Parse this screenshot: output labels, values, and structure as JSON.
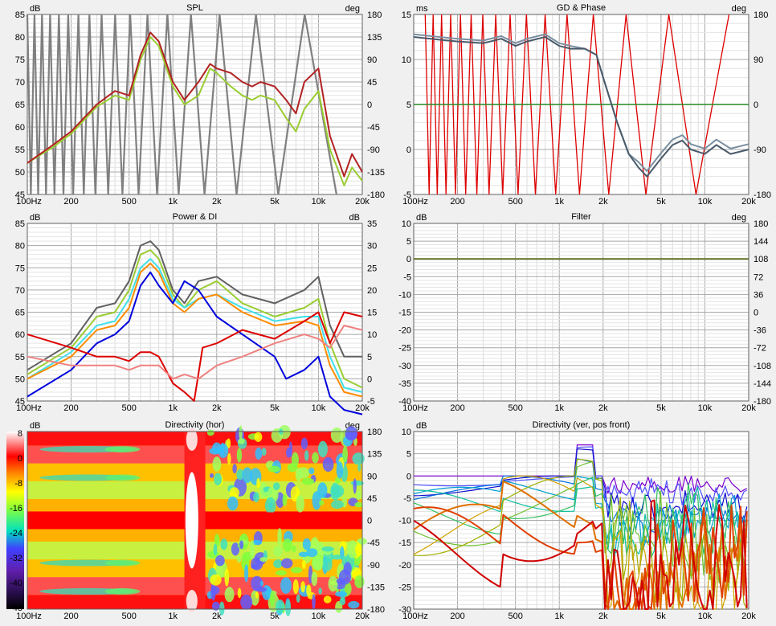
{
  "chart_data": [
    {
      "type": "line",
      "title": "SPL",
      "left_unit": "dB",
      "right_unit": "deg",
      "x_ticks": [
        "100Hz",
        "200",
        "500",
        "1k",
        "2k",
        "5k",
        "10k",
        "20k"
      ],
      "xlim": [
        100,
        20000
      ],
      "ylim": [
        45,
        85
      ],
      "y_ticks": [
        45,
        50,
        55,
        60,
        65,
        70,
        75,
        80,
        85
      ],
      "y2lim": [
        -180,
        180
      ],
      "y2_ticks": [
        180,
        135,
        90,
        45,
        0,
        -45,
        -90,
        -135,
        -180
      ],
      "grid": true,
      "colors": {
        "spl_dark": "#b22222",
        "spl_light": "#9acd32",
        "phase": "#808080"
      },
      "series": [
        {
          "x": [
            100,
            150,
            200,
            300,
            400,
            500,
            600,
            700,
            800,
            1000,
            1200,
            1500,
            1800,
            2000,
            2500,
            3000,
            3500,
            4000,
            5000,
            6000,
            7000,
            8000,
            10000,
            12000,
            15000,
            17000,
            20000
          ],
          "values": [
            52,
            56,
            59,
            65,
            68,
            67,
            76,
            81,
            79,
            70,
            66,
            70,
            74,
            73,
            72,
            70,
            69,
            70,
            69,
            66,
            63,
            70,
            73,
            58,
            49,
            54,
            50
          ]
        },
        {
          "x": [
            100,
            150,
            200,
            300,
            400,
            500,
            600,
            700,
            800,
            1000,
            1200,
            1500,
            1800,
            2000,
            2500,
            3000,
            3500,
            4000,
            5000,
            6000,
            7000,
            8000,
            10000,
            12000,
            15000,
            17000,
            20000
          ],
          "values": [
            52,
            55.5,
            58.5,
            64.5,
            67,
            66,
            75,
            80,
            78,
            69,
            65,
            67,
            73,
            72,
            69,
            67,
            66,
            67,
            66,
            62,
            59,
            64,
            68,
            55,
            47,
            51,
            48
          ]
        }
      ]
    },
    {
      "type": "line",
      "title": "GD & Phase",
      "left_unit": "ms",
      "right_unit": "deg",
      "x_ticks": [
        "100Hz",
        "200",
        "500",
        "1k",
        "2k",
        "5k",
        "10k",
        "20k"
      ],
      "xlim": [
        100,
        20000
      ],
      "ylim": [
        -5,
        15
      ],
      "y_ticks": [
        15,
        10,
        5,
        0,
        -5
      ],
      "y2lim": [
        -180,
        180
      ],
      "y2_ticks": [
        180,
        90,
        0,
        -90,
        -180
      ],
      "grid": true,
      "colors": {
        "gd_dark": "#4a5a6a",
        "gd_light": "#7a8fa0",
        "phase": "#dd0000",
        "ref": "#228b22"
      },
      "series": [
        {
          "x": [
            100,
            150,
            200,
            300,
            400,
            500,
            600,
            800,
            1000,
            1200,
            1500,
            1800,
            2000,
            2500,
            3000,
            3500,
            4000,
            5000,
            6000,
            7000,
            8000,
            10000,
            12000,
            15000,
            20000
          ],
          "values": [
            12.5,
            12.2,
            12,
            11.8,
            12.3,
            11.5,
            12,
            12.5,
            11.5,
            11.2,
            11.2,
            10.5,
            8,
            3,
            -0.5,
            -2,
            -3,
            -1,
            0.5,
            1,
            0,
            -0.5,
            0.5,
            -0.5,
            0
          ]
        }
      ]
    },
    {
      "type": "line",
      "title": "Power & DI",
      "left_unit": "dB",
      "right_unit": "dB",
      "x_ticks": [
        "100Hz",
        "200",
        "500",
        "1k",
        "2k",
        "5k",
        "10k",
        "20k"
      ],
      "xlim": [
        100,
        20000
      ],
      "ylim": [
        45,
        85
      ],
      "y_ticks": [
        45,
        50,
        55,
        60,
        65,
        70,
        75,
        80,
        85
      ],
      "y2lim": [
        -5,
        35
      ],
      "y2_ticks": [
        35,
        30,
        25,
        20,
        15,
        10,
        5,
        0,
        -5
      ],
      "grid": true,
      "colors": {
        "gray": "#606060",
        "green": "#9acd32",
        "cyan": "#40e0e8",
        "orange": "#ff8c00",
        "blue": "#0000dd",
        "red": "#dd0000",
        "salmon": "#f08080"
      },
      "series": [
        {
          "x": [
            100,
            200,
            300,
            400,
            500,
            600,
            700,
            800,
            1000,
            1200,
            1500,
            2000,
            3000,
            5000,
            8000,
            10000,
            12000,
            15000,
            20000
          ],
          "values": [
            52,
            58,
            66,
            67,
            72,
            80,
            81,
            79,
            70,
            67,
            72,
            73,
            69,
            67,
            70,
            73,
            62,
            55,
            55
          ]
        },
        {
          "x": [
            100,
            200,
            300,
            400,
            500,
            600,
            700,
            800,
            1000,
            1200,
            1500,
            2000,
            3000,
            5000,
            8000,
            10000,
            12000,
            15000,
            20000
          ],
          "values": [
            51,
            57,
            64,
            65,
            70,
            78,
            79,
            77,
            69,
            66,
            70,
            72,
            67,
            64,
            66,
            68,
            58,
            50,
            48
          ]
        },
        {
          "x": [
            100,
            200,
            300,
            400,
            500,
            600,
            700,
            800,
            1000,
            1200,
            1500,
            2000,
            3000,
            5000,
            8000,
            10000,
            12000,
            15000,
            20000
          ],
          "values": [
            50,
            56,
            62,
            63,
            68,
            75,
            77,
            75,
            68,
            66,
            68,
            69,
            66,
            63,
            64,
            64,
            55,
            48,
            47
          ]
        },
        {
          "x": [
            100,
            200,
            300,
            400,
            500,
            600,
            700,
            800,
            1000,
            1200,
            1500,
            2000,
            3000,
            5000,
            8000,
            10000,
            12000,
            15000,
            20000
          ],
          "values": [
            50,
            55,
            61,
            62,
            66,
            74,
            76,
            74,
            67,
            65,
            68,
            69,
            65,
            62,
            63,
            62,
            53,
            47,
            46
          ]
        },
        {
          "x": [
            100,
            200,
            300,
            400,
            500,
            600,
            700,
            800,
            1000,
            1200,
            1500,
            2000,
            3000,
            5000,
            6000,
            8000,
            10000,
            12000,
            15000,
            20000
          ],
          "values": [
            46,
            52,
            58,
            60,
            63,
            71,
            74,
            71,
            67,
            72,
            70,
            64,
            60,
            55,
            50,
            52,
            55,
            46,
            43,
            42
          ]
        },
        {
          "x": [
            100,
            200,
            300,
            400,
            500,
            600,
            700,
            800,
            1000,
            1200,
            1400,
            1600,
            2000,
            3000,
            5000,
            8000,
            10000,
            12000,
            15000,
            20000
          ],
          "values": [
            10,
            7,
            5,
            5,
            4,
            6,
            6,
            5,
            -1,
            -3,
            -5,
            7,
            8,
            11,
            9,
            13,
            15,
            8,
            15,
            14
          ]
        },
        {
          "x": [
            100,
            200,
            300,
            400,
            500,
            600,
            700,
            800,
            1000,
            1200,
            1500,
            2000,
            3000,
            5000,
            8000,
            10000,
            12000,
            15000,
            20000
          ],
          "values": [
            5,
            3,
            3,
            3,
            2,
            3,
            3,
            3,
            0,
            1,
            0,
            3,
            5,
            8,
            10,
            9,
            7,
            12,
            11
          ]
        }
      ]
    },
    {
      "type": "line",
      "title": "Filter",
      "left_unit": "dB",
      "right_unit": "deg",
      "x_ticks": [
        "100Hz",
        "200",
        "500",
        "1k",
        "2k",
        "5k",
        "10k",
        "20k"
      ],
      "xlim": [
        100,
        20000
      ],
      "ylim": [
        -40,
        10
      ],
      "y_ticks": [
        10,
        5,
        0,
        -5,
        -10,
        -15,
        -20,
        -25,
        -30,
        -35,
        -40
      ],
      "y2lim": [
        -180,
        180
      ],
      "y2_ticks": [
        180,
        144,
        108,
        72,
        36,
        0,
        -36,
        -72,
        -108,
        -144,
        -180
      ],
      "grid": true,
      "colors": {
        "mag": "#8b5a2b",
        "phase": "#228b22"
      },
      "series": [
        {
          "x": [
            100,
            20000
          ],
          "values": [
            0,
            0
          ]
        }
      ]
    },
    {
      "type": "heatmap",
      "title": "Directivity (hor)",
      "left_unit": "dB",
      "right_unit": "deg",
      "x_ticks": [
        "100Hz",
        "200",
        "500",
        "1k",
        "2k",
        "5k",
        "10k",
        "20k"
      ],
      "xlim": [
        100,
        20000
      ],
      "y2lim": [
        -180,
        180
      ],
      "y2_ticks": [
        180,
        135,
        90,
        45,
        0,
        -45,
        -90,
        -135,
        -180
      ],
      "colorbar_ticks": [
        8,
        0,
        -8,
        -16,
        -24,
        -32,
        -40,
        -48
      ]
    },
    {
      "type": "line",
      "title": "Directivity (ver, pos front)",
      "left_unit": "dB",
      "x_ticks": [
        "100Hz",
        "200",
        "500",
        "1k",
        "2k",
        "5k",
        "10k",
        "20k"
      ],
      "xlim": [
        100,
        20000
      ],
      "ylim": [
        -30,
        10
      ],
      "y_ticks": [
        10,
        5,
        0,
        -5,
        -10,
        -15,
        -20,
        -25,
        -30
      ],
      "grid": true
    }
  ]
}
